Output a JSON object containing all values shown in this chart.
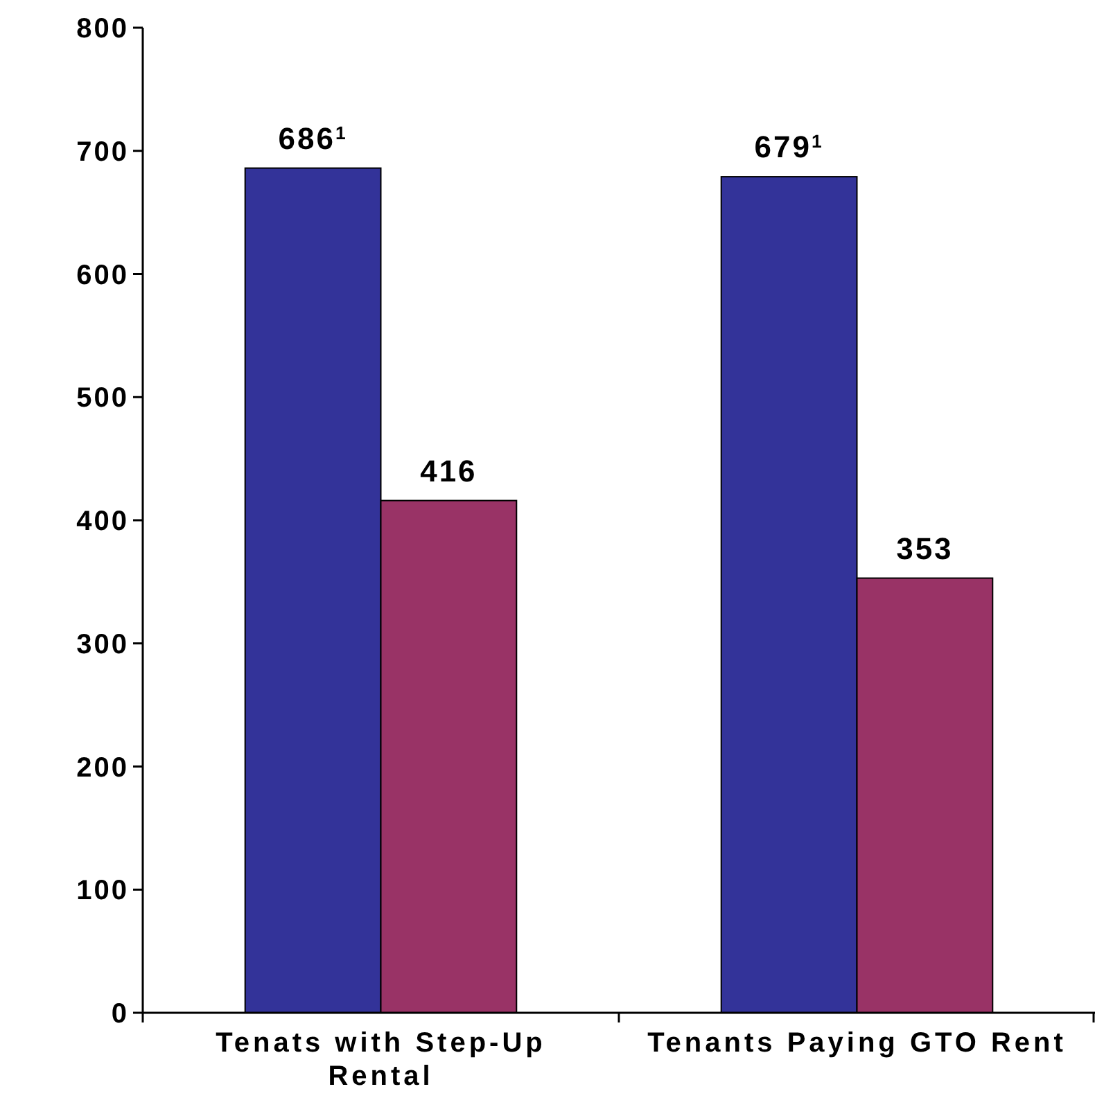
{
  "chart_data": {
    "type": "bar",
    "categories": [
      "Tenats with Step-Up Rental",
      "Tenants Paying GTO Rent"
    ],
    "series": [
      {
        "color": "#333399",
        "values": [
          686,
          679
        ],
        "value_labels": [
          "686$^{1}$",
          "679$^{1}$"
        ]
      },
      {
        "color": "#993366",
        "values": [
          416,
          353
        ],
        "value_labels": [
          "416",
          "353"
        ]
      }
    ],
    "ylim": [
      0,
      800
    ],
    "yticks": [
      0,
      100,
      200,
      300,
      400,
      500,
      600,
      700,
      800
    ]
  }
}
